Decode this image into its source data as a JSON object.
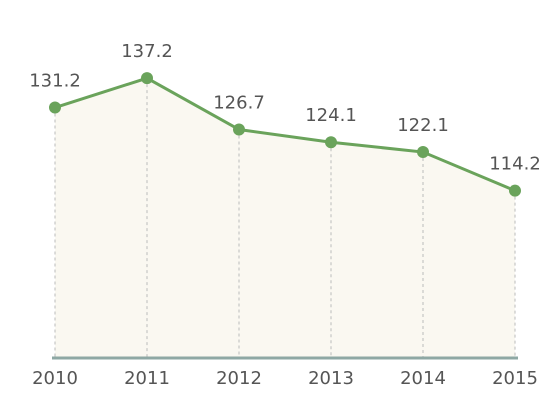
{
  "chart_data": {
    "type": "line",
    "categories": [
      "2010",
      "2011",
      "2012",
      "2013",
      "2014",
      "2015"
    ],
    "values": [
      131.2,
      137.2,
      126.7,
      124.1,
      122.1,
      114.2
    ],
    "color": "#6aa35b",
    "area_color": "#faf8f1",
    "ylim": [
      80,
      145
    ]
  }
}
